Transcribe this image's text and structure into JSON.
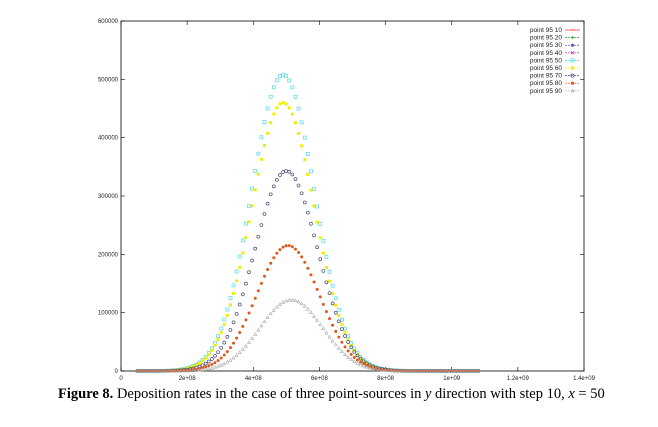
{
  "chart_data": {
    "type": "scatter",
    "title": "",
    "xlabel": "",
    "ylabel": "",
    "xlim": [
      0,
      1400000000
    ],
    "ylim": [
      0,
      600000
    ],
    "xticks": [
      0,
      200000000,
      400000000,
      600000000,
      800000000,
      1000000000,
      1200000000,
      1400000000
    ],
    "xtick_labels": [
      "0",
      "2e+08",
      "4e+08",
      "6e+08",
      "8e+08",
      "1e+09",
      "1.2e+09",
      "1.4e+09"
    ],
    "yticks": [
      0,
      100000,
      200000,
      300000,
      400000,
      500000,
      600000
    ],
    "ytick_labels": [
      "0",
      "100000",
      "200000",
      "300000",
      "400000",
      "500000",
      "600000"
    ],
    "grid": false,
    "legend_position": "top-right",
    "x_range_of_series": [
      50000000,
      1080000000
    ],
    "series": [
      {
        "name": "point 95 10",
        "peak_x": 500000000,
        "peak_y": 0,
        "color": "#e8302c",
        "marker": "line"
      },
      {
        "name": "point 95 20",
        "peak_x": 500000000,
        "peak_y": 0,
        "color": "#27a527",
        "marker": "plus"
      },
      {
        "name": "point 95 30",
        "peak_x": 500000000,
        "peak_y": 0,
        "color": "#3a3aa8",
        "marker": "star"
      },
      {
        "name": "point 95 40",
        "peak_x": 500000000,
        "peak_y": 0,
        "color": "#c020c0",
        "marker": "cross"
      },
      {
        "name": "point 95 50",
        "peak_x": 490000000,
        "peak_y": 508000,
        "color": "#4ed8e8",
        "marker": "square"
      },
      {
        "name": "point 95 60",
        "peak_x": 490000000,
        "peak_y": 460000,
        "color": "#f2ee00",
        "marker": "filled-square"
      },
      {
        "name": "point 95 70",
        "peak_x": 500000000,
        "peak_y": 343000,
        "color": "#4a4a78",
        "marker": "circle"
      },
      {
        "name": "point 95 80",
        "peak_x": 505000000,
        "peak_y": 215000,
        "color": "#e2561a",
        "marker": "filled-circle"
      },
      {
        "name": "point 95 90",
        "peak_x": 515000000,
        "peak_y": 122000,
        "color": "#a8a8a8",
        "marker": "triangle"
      }
    ]
  },
  "caption": {
    "label": "Figure 8.",
    "text": " Deposition rates in the case of three point-sources in ",
    "var_y": "y",
    "text2": " direction with step 10, ",
    "var_x": "x",
    "text3": " = 50"
  }
}
